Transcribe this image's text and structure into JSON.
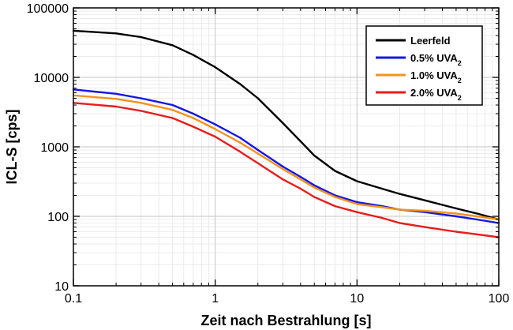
{
  "chart_data": {
    "type": "line",
    "title": "",
    "xlabel": "Zeit nach Bestrahlung [s]",
    "ylabel": "ICL-S [cps]",
    "x_scale": "log",
    "y_scale": "log",
    "xlim": [
      0.1,
      100
    ],
    "ylim": [
      10,
      100000
    ],
    "x_ticks": [
      "0.1",
      "1",
      "10",
      "100"
    ],
    "y_ticks": [
      "10",
      "100",
      "1000",
      "10000",
      "100000"
    ],
    "grid": true,
    "legend_position": "top-right",
    "x": [
      0.1,
      0.2,
      0.3,
      0.5,
      0.7,
      1,
      1.5,
      2,
      3,
      4,
      5,
      7,
      10,
      15,
      20,
      30,
      50,
      70,
      100
    ],
    "series": [
      {
        "name": "Leerfeld",
        "color": "#000000",
        "values": [
          47000,
          43000,
          38000,
          29000,
          21000,
          14000,
          8000,
          5000,
          2200,
          1200,
          750,
          450,
          320,
          250,
          210,
          170,
          130,
          110,
          90
        ]
      },
      {
        "name": "0.5% UVA",
        "name_sub": "2",
        "color": "#1515e6",
        "values": [
          6700,
          5800,
          5000,
          4000,
          3000,
          2100,
          1350,
          900,
          520,
          370,
          280,
          200,
          160,
          140,
          125,
          115,
          100,
          90,
          80
        ]
      },
      {
        "name": "1.0% UVA",
        "name_sub": "2",
        "color": "#f2921c",
        "values": [
          5500,
          4900,
          4300,
          3400,
          2600,
          1800,
          1150,
          800,
          480,
          340,
          260,
          190,
          150,
          135,
          125,
          120,
          110,
          100,
          90
        ]
      },
      {
        "name": "2.0% UVA",
        "name_sub": "2",
        "color": "#e81c1c",
        "values": [
          4300,
          3800,
          3300,
          2600,
          1950,
          1400,
          850,
          580,
          340,
          250,
          190,
          140,
          115,
          95,
          80,
          70,
          60,
          55,
          50
        ]
      }
    ]
  }
}
